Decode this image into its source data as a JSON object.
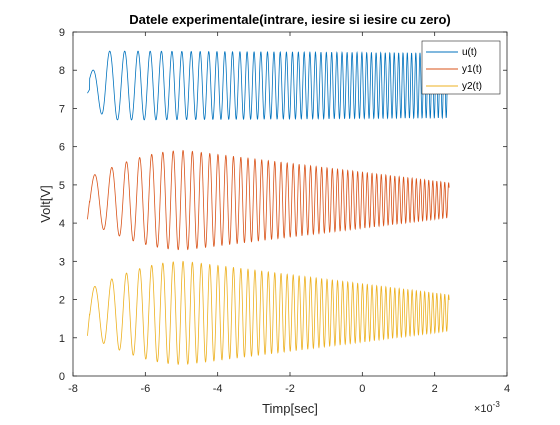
{
  "figure": {
    "background": "#ffffff"
  },
  "chart_data": {
    "type": "line",
    "title": "Datele experimentale(intrare, iesire si iesire cu zero)",
    "xlabel": "Timp[sec]",
    "ylabel": "Volt[V]",
    "x_exponent_label": "×10",
    "x_exponent_power": "-3",
    "xlim": [
      -0.008,
      0.004
    ],
    "ylim": [
      0,
      9
    ],
    "x_ticks": [
      -0.008,
      -0.006,
      -0.004,
      -0.002,
      0,
      0.002,
      0.004
    ],
    "x_tick_labels": [
      "-8",
      "-6",
      "-4",
      "-2",
      "0",
      "2",
      "4"
    ],
    "y_ticks": [
      0,
      1,
      2,
      3,
      4,
      5,
      6,
      7,
      8,
      9
    ],
    "y_tick_labels": [
      "0",
      "1",
      "2",
      "3",
      "4",
      "5",
      "6",
      "7",
      "8",
      "9"
    ],
    "grid": false,
    "legend_position": "top-right",
    "x_range_data": [
      -0.0076,
      0.0024
    ],
    "series": [
      {
        "name": "u(t)",
        "color": "#0072BD",
        "signal": "chirp",
        "offset": 7.6,
        "amplitude": 0.9,
        "start_value": 7.4,
        "samples": [
          [
            -0.0076,
            7.4
          ],
          [
            -0.0075,
            7.5
          ],
          [
            -0.0072,
            8.3
          ],
          [
            -0.007,
            6.75
          ],
          [
            -0.0068,
            8.5
          ],
          [
            -0.006,
            6.75
          ],
          [
            -0.004,
            8.5
          ],
          [
            0.0,
            6.7
          ],
          [
            0.0024,
            8.5
          ]
        ]
      },
      {
        "name": "y1(t)",
        "color": "#D95319",
        "signal": "chirp response",
        "offset": 4.6,
        "samples": [
          [
            -0.0076,
            4.1
          ],
          [
            -0.0075,
            4.6
          ],
          [
            -0.007,
            5.0
          ],
          [
            -0.0065,
            5.5
          ],
          [
            -0.005,
            5.9
          ],
          [
            -0.005,
            3.3
          ],
          [
            -0.003,
            5.5
          ],
          [
            -0.002,
            5.3
          ],
          [
            0.0,
            5.1
          ],
          [
            0.0024,
            4.2
          ]
        ]
      },
      {
        "name": "y2(t)",
        "color": "#EDB120",
        "signal": "chirp response from zero",
        "offset": 1.65,
        "samples": [
          [
            -0.0076,
            1.05
          ],
          [
            -0.0075,
            1.65
          ],
          [
            -0.007,
            2.1
          ],
          [
            -0.0065,
            2.6
          ],
          [
            -0.005,
            3.0
          ],
          [
            -0.005,
            0.3
          ],
          [
            -0.003,
            2.6
          ],
          [
            -0.002,
            2.4
          ],
          [
            0.0,
            2.2
          ],
          [
            0.0024,
            1.3
          ]
        ]
      }
    ]
  }
}
